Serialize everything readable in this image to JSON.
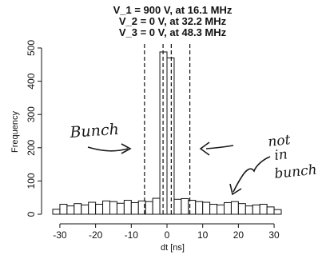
{
  "chart_data": {
    "type": "bar",
    "title_lines": [
      "V_1 = 900 V, at  16.1 MHz",
      "V_2 = 0 V, at  32.2 MHz",
      "V_3 = 0 V, at  48.3 MHz"
    ],
    "xlabel": "dt [ns]",
    "ylabel": "Frequency",
    "xlim": [
      -32,
      32
    ],
    "ylim": [
      0,
      500
    ],
    "xticks": [
      -30,
      -20,
      -10,
      0,
      10,
      20,
      30
    ],
    "yticks": [
      0,
      100,
      200,
      300,
      400,
      500
    ],
    "bin_width": 2,
    "bins": [
      {
        "x0": -32,
        "x1": -30,
        "value": 15
      },
      {
        "x0": -30,
        "x1": -28,
        "value": 30
      },
      {
        "x0": -28,
        "x1": -26,
        "value": 25
      },
      {
        "x0": -26,
        "x1": -24,
        "value": 32
      },
      {
        "x0": -24,
        "x1": -22,
        "value": 28
      },
      {
        "x0": -22,
        "x1": -20,
        "value": 36
      },
      {
        "x0": -20,
        "x1": -18,
        "value": 30
      },
      {
        "x0": -18,
        "x1": -16,
        "value": 40
      },
      {
        "x0": -16,
        "x1": -14,
        "value": 38
      },
      {
        "x0": -14,
        "x1": -12,
        "value": 33
      },
      {
        "x0": -12,
        "x1": -10,
        "value": 42
      },
      {
        "x0": -10,
        "x1": -8,
        "value": 35
      },
      {
        "x0": -8,
        "x1": -6,
        "value": 40
      },
      {
        "x0": -6,
        "x1": -4,
        "value": 38
      },
      {
        "x0": -4,
        "x1": -2,
        "value": 48
      },
      {
        "x0": -2,
        "x1": 0,
        "value": 488
      },
      {
        "x0": 0,
        "x1": 2,
        "value": 470
      },
      {
        "x0": 2,
        "x1": 4,
        "value": 45
      },
      {
        "x0": 4,
        "x1": 6,
        "value": 47
      },
      {
        "x0": 6,
        "x1": 8,
        "value": 42
      },
      {
        "x0": 8,
        "x1": 10,
        "value": 38
      },
      {
        "x0": 10,
        "x1": 12,
        "value": 36
      },
      {
        "x0": 12,
        "x1": 14,
        "value": 30
      },
      {
        "x0": 14,
        "x1": 16,
        "value": 28
      },
      {
        "x0": 16,
        "x1": 18,
        "value": 35
      },
      {
        "x0": 18,
        "x1": 20,
        "value": 38
      },
      {
        "x0": 20,
        "x1": 22,
        "value": 32
      },
      {
        "x0": 22,
        "x1": 24,
        "value": 25
      },
      {
        "x0": 24,
        "x1": 26,
        "value": 28
      },
      {
        "x0": 26,
        "x1": 28,
        "value": 30
      },
      {
        "x0": 28,
        "x1": 30,
        "value": 22
      },
      {
        "x0": 30,
        "x1": 32,
        "value": 14
      }
    ],
    "dashed_lines_x": [
      -6.3,
      -1.1,
      1.2,
      6.4
    ],
    "grid": false
  },
  "annotations": {
    "bunch": "Bunch",
    "not_in_bunch_line1": "not",
    "not_in_bunch_line2": "in",
    "not_in_bunch_line3": "bunch"
  }
}
